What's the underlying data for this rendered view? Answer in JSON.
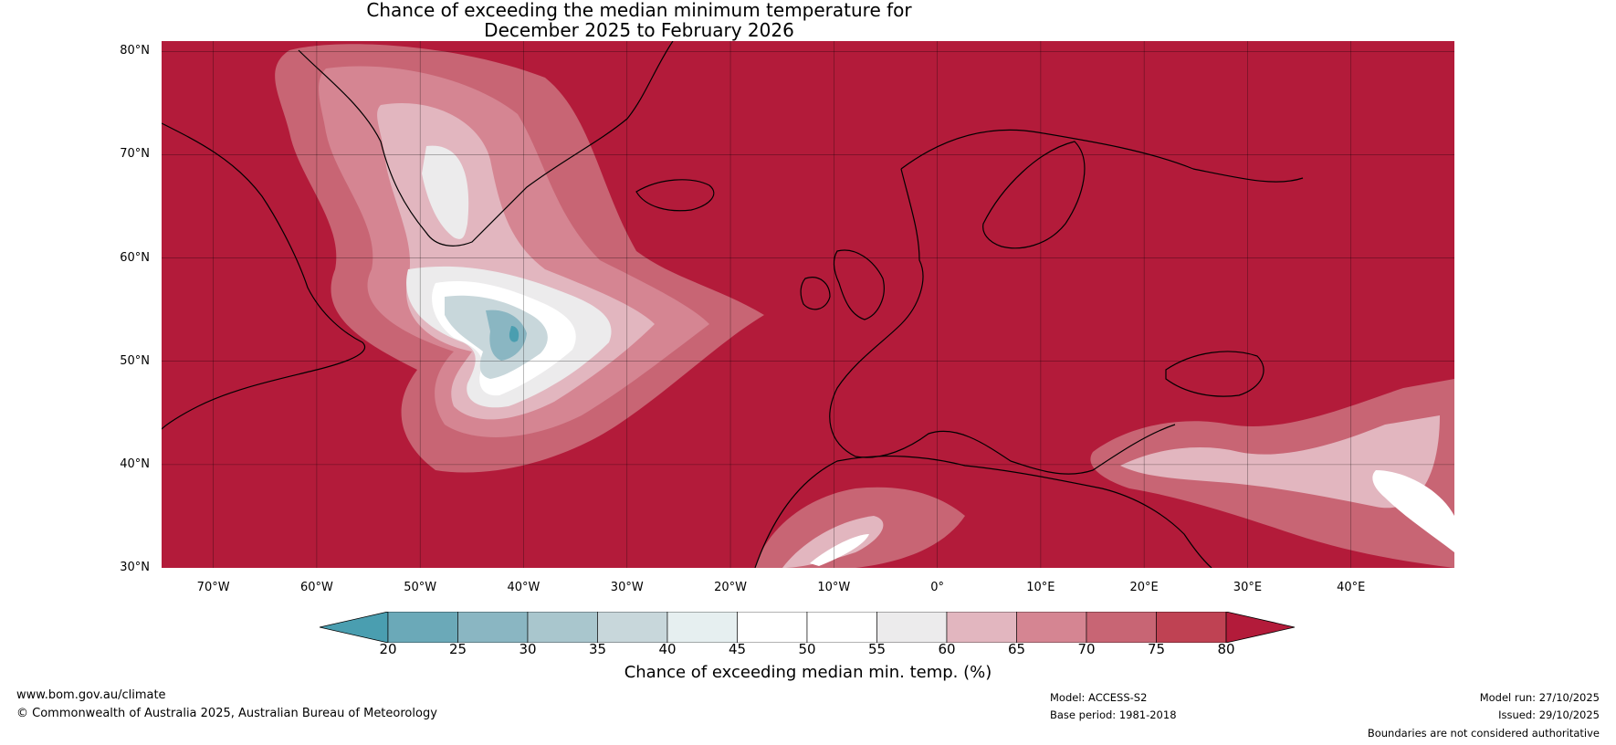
{
  "title": {
    "line1": "Chance of exceeding the median minimum temperature for",
    "line2": "December 2025 to February 2026"
  },
  "map": {
    "extent": {
      "lon": [
        -75,
        50
      ],
      "lat": [
        30,
        81
      ]
    },
    "background_color": "#b31b3a",
    "gridlines": true,
    "lat_labels": [
      "80°N",
      "70°N",
      "60°N",
      "50°N",
      "40°N",
      "30°N"
    ],
    "lon_labels": [
      "70°W",
      "60°W",
      "50°W",
      "40°W",
      "30°W",
      "20°W",
      "10°W",
      "0°",
      "10°E",
      "20°E",
      "30°E",
      "40°E"
    ]
  },
  "colorbar": {
    "ticks": [
      "20",
      "25",
      "30",
      "35",
      "40",
      "45",
      "50",
      "55",
      "60",
      "65",
      "70",
      "75",
      "80"
    ],
    "colors": [
      "#6ba9b8",
      "#8ab6c2",
      "#a9c6cd",
      "#c8d7db",
      "#e6eff0",
      "#ffffff",
      "#ffffff",
      "#ecebec",
      "#e2b6bf",
      "#d58592",
      "#c86574",
      "#bf4253"
    ],
    "under_color": "#4a9eb0",
    "over_color": "#b31b3a",
    "label": "Chance of exceeding median min. temp. (%)"
  },
  "footer": {
    "website": "www.bom.gov.au/climate",
    "copyright": "© Commonwealth of Australia 2025, Australian Bureau of Meteorology",
    "model": "Model: ACCESS-S2",
    "base_period": "Base period: 1981-2018",
    "model_run": "Model run: 27/10/2025",
    "issued": "Issued: 29/10/2025",
    "disclaimer": "Boundaries are not considered authoritative"
  }
}
